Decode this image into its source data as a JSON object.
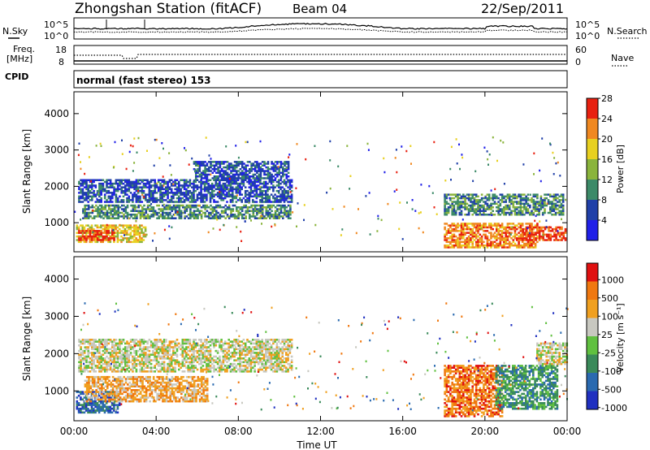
{
  "header": {
    "title": "Zhongshan Station (fitACF)",
    "beam": "Beam 04",
    "date": "22/Sep/2011"
  },
  "summary": {
    "nsky_label": "N.Sky",
    "nsearch_label": "N.Search",
    "noise_tick_top": "10^5",
    "noise_tick_bottom": "10^0",
    "noise_tick_top_right": "10^5",
    "noise_tick_bottom_right": "10^0",
    "freq_label": "Freq.",
    "freq_unit": "[MHz]",
    "freq_tick_top": "18",
    "freq_tick_bottom": "8",
    "nave_label": "Nave",
    "nave_tick_top": "60",
    "nave_tick_bottom": "0",
    "cpid_label": "CPID",
    "cpid_text": "normal (fast stereo) 153"
  },
  "chart_data": [
    {
      "type": "heatmap",
      "name": "power",
      "ylabel": "Slant Range [km]",
      "xlabel": "",
      "xticks": [
        "00:00",
        "04:00",
        "08:00",
        "12:00",
        "16:00",
        "20:00",
        "00:00"
      ],
      "yticks": [
        1000,
        2000,
        3000,
        4000
      ],
      "ylim": [
        200,
        4600
      ],
      "xlim_hours": [
        0,
        24
      ],
      "colorbar_label": "Power [dB]",
      "colorbar_ticks": [
        "4",
        "8",
        "12",
        "16",
        "20",
        "24",
        "28"
      ],
      "colors": [
        "#2020e8",
        "#2040a8",
        "#3c8a68",
        "#8ab43c",
        "#e8d020",
        "#f08820",
        "#e82010"
      ],
      "regions": [
        {
          "t0": 0.2,
          "t1": 10.6,
          "r0": 1550,
          "r1": 2200,
          "v": 1
        },
        {
          "t0": 0.4,
          "t1": 10.5,
          "r0": 1100,
          "r1": 1500,
          "v": 2
        },
        {
          "t0": 0.1,
          "t1": 3.5,
          "r0": 450,
          "r1": 950,
          "v": 4
        },
        {
          "t0": 0.2,
          "t1": 2.0,
          "r0": 500,
          "r1": 800,
          "v": 6
        },
        {
          "t0": 5.8,
          "t1": 10.4,
          "r0": 2200,
          "r1": 2700,
          "v": 1
        },
        {
          "t0": 18.0,
          "t1": 23.8,
          "r0": 1200,
          "r1": 1800,
          "v": 2
        },
        {
          "t0": 18.0,
          "t1": 22.5,
          "r0": 300,
          "r1": 1000,
          "v": 5
        },
        {
          "t0": 21.8,
          "t1": 23.9,
          "r0": 500,
          "r1": 900,
          "v": 6
        }
      ]
    },
    {
      "type": "heatmap",
      "name": "velocity",
      "ylabel": "Slant Range [km]",
      "xlabel": "Time UT",
      "xticks": [
        "00:00",
        "04:00",
        "08:00",
        "12:00",
        "16:00",
        "20:00",
        "00:00"
      ],
      "yticks": [
        1000,
        2000,
        3000,
        4000
      ],
      "ylim": [
        200,
        4600
      ],
      "xlim_hours": [
        0,
        24
      ],
      "colorbar_label": "Velocity [m s⁻¹]",
      "colorbar_ticks": [
        "1000",
        "500",
        "100",
        "25",
        "-25",
        "-100",
        "-500",
        "-1000"
      ],
      "colors": [
        "#2030c0",
        "#2a6ab0",
        "#3a8a5a",
        "#60c040",
        "#c8c8c0",
        "#f0a020",
        "#f07810",
        "#e01010"
      ],
      "regions": [
        {
          "t0": 0.2,
          "t1": 10.6,
          "r0": 1500,
          "r1": 2400,
          "v": 4
        },
        {
          "t0": 0.1,
          "t1": 2.2,
          "r0": 400,
          "r1": 1000,
          "v": 1
        },
        {
          "t0": 0.5,
          "t1": 6.5,
          "r0": 700,
          "r1": 1400,
          "v": 5
        },
        {
          "t0": 18.0,
          "t1": 20.8,
          "r0": 300,
          "r1": 1700,
          "v": 6
        },
        {
          "t0": 20.5,
          "t1": 23.5,
          "r0": 500,
          "r1": 1700,
          "v": 2
        },
        {
          "t0": 22.5,
          "t1": 24.0,
          "r0": 1700,
          "r1": 2300,
          "v": 4
        }
      ]
    }
  ]
}
